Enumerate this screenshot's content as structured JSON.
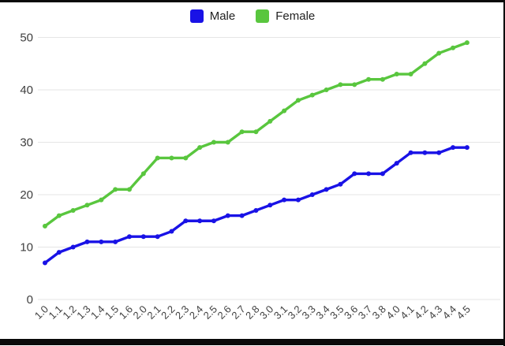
{
  "chart_data": {
    "type": "line",
    "title": "",
    "xlabel": "",
    "ylabel": "",
    "x": [
      "1.0",
      "1.1",
      "1.2",
      "1.3",
      "1.4",
      "1.5",
      "1.6",
      "2.0",
      "2.1",
      "2.2",
      "2.3",
      "2.4",
      "2.5",
      "2.6",
      "2.7",
      "2.8",
      "3.0",
      "3.1",
      "3.2",
      "3.3",
      "3.4",
      "3.5",
      "3.6",
      "3.7",
      "3.8",
      "4.0",
      "4.1",
      "4.2",
      "4.3",
      "4.4",
      "4.5"
    ],
    "series": [
      {
        "name": "Male",
        "color": "#1912e6",
        "values": [
          7,
          9,
          10,
          11,
          11,
          11,
          12,
          12,
          12,
          13,
          15,
          15,
          15,
          16,
          16,
          17,
          18,
          19,
          19,
          20,
          21,
          22,
          24,
          24,
          24,
          26,
          28,
          28,
          28,
          29,
          29
        ]
      },
      {
        "name": "Female",
        "color": "#59c63e",
        "values": [
          14,
          16,
          17,
          18,
          19,
          21,
          21,
          24,
          27,
          27,
          27,
          29,
          30,
          30,
          32,
          32,
          34,
          36,
          38,
          39,
          40,
          41,
          41,
          42,
          42,
          43,
          43,
          45,
          47,
          48,
          49
        ]
      }
    ],
    "ylim": [
      0,
      50
    ],
    "yticks": [
      0,
      10,
      20,
      30,
      40,
      50
    ],
    "grid": true,
    "legend_position": "top"
  },
  "colors": {
    "grid": "#e5e5e5",
    "tick_text": "#3f3f3f",
    "legend_text": "#232323",
    "frame": "#0a0a0a"
  }
}
